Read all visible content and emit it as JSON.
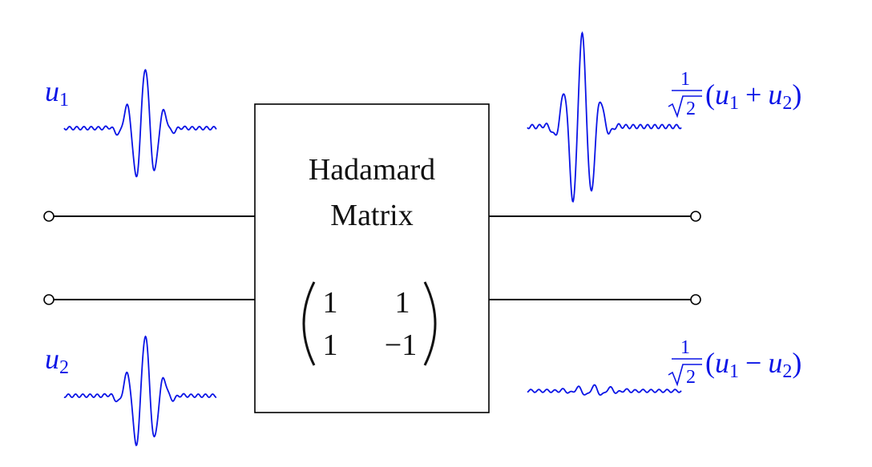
{
  "colors": {
    "signal": "#0a14e6",
    "line": "#000000",
    "text": "#111111"
  },
  "block": {
    "line1": "Hadamard",
    "line2": "Matrix"
  },
  "matrix": {
    "r1c1": "1",
    "r1c2": "1",
    "r2c1": "1",
    "r2c2": "−1"
  },
  "inputs": {
    "u1": {
      "sym": "u",
      "sub": "1"
    },
    "u2": {
      "sym": "u",
      "sub": "2"
    }
  },
  "outputs": {
    "sum": {
      "num": "1",
      "radicand": "2",
      "open": "(",
      "a": "u",
      "a_sub": "1",
      "op": "+",
      "b": "u",
      "b_sub": "2",
      "close": ")"
    },
    "diff": {
      "num": "1",
      "radicand": "2",
      "open": "(",
      "a": "u",
      "a_sub": "1",
      "op": "−",
      "b": "u",
      "b_sub": "2",
      "close": ")"
    }
  }
}
